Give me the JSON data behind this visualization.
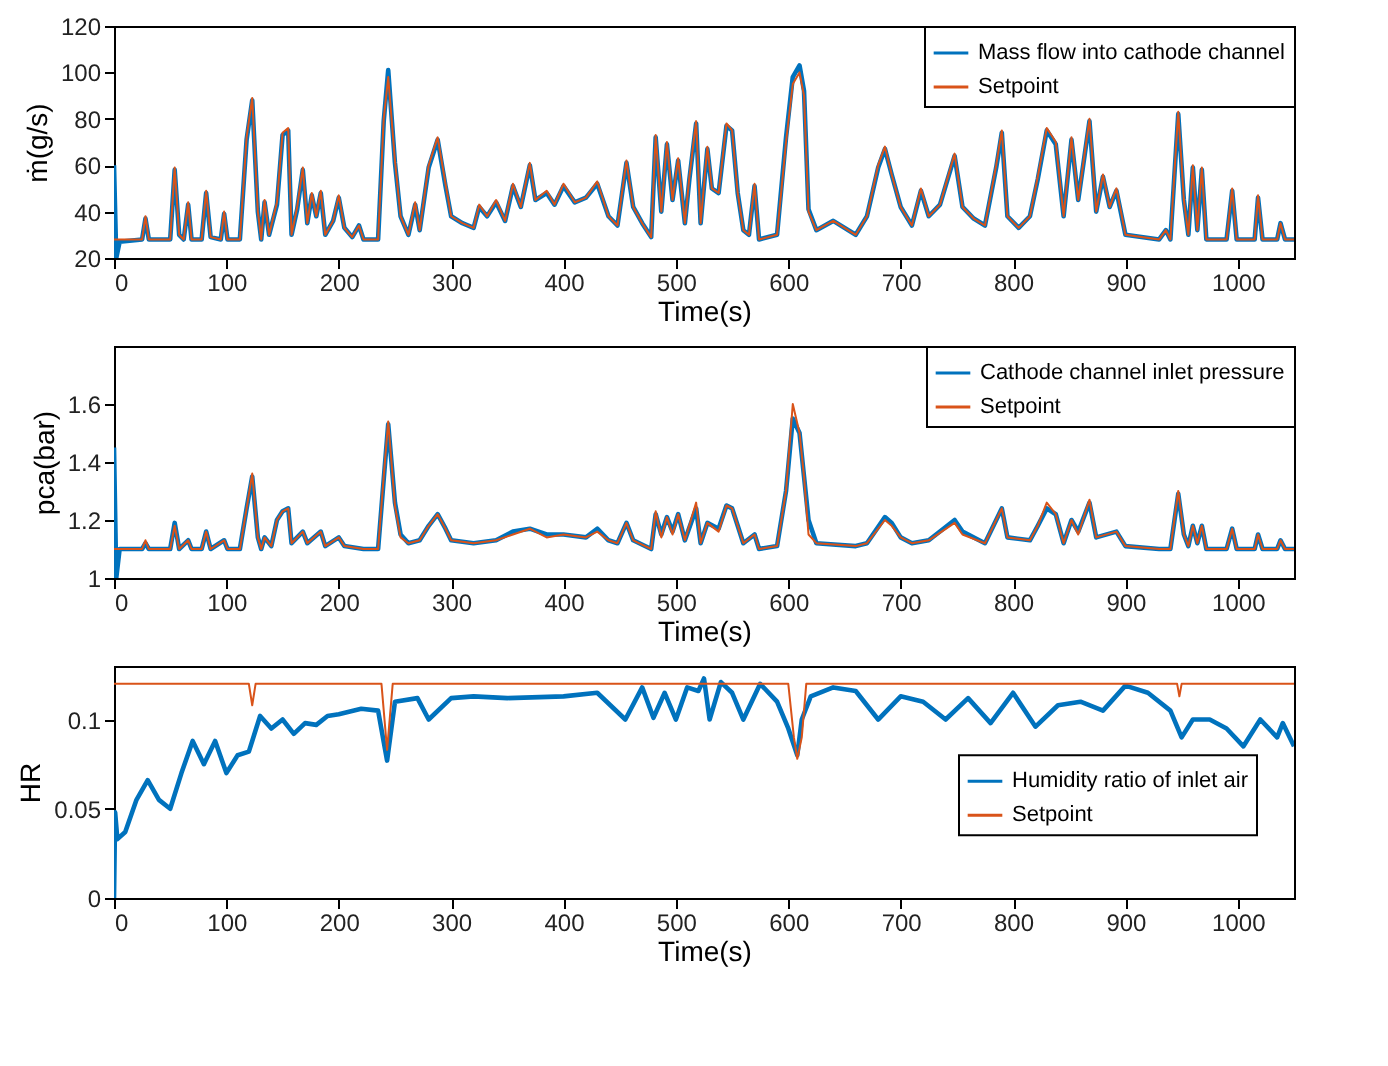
{
  "chart_data": [
    {
      "type": "line",
      "xlabel": "Time(s)",
      "ylabel": "ṁ(g/s)",
      "xlim": [
        0,
        1050
      ],
      "xticks": [
        0,
        100,
        200,
        300,
        400,
        500,
        600,
        700,
        800,
        900,
        1000
      ],
      "ylim": [
        20,
        120
      ],
      "yticks": [
        20,
        40,
        60,
        80,
        100,
        120
      ],
      "grid": false,
      "legend": "top right",
      "marker": "none",
      "line_style": "solid",
      "series": [
        {
          "name": "Mass flow into cathode channel",
          "color": "#0072bd",
          "x": [
            0,
            2,
            5,
            25,
            28,
            31,
            50,
            54,
            58,
            62,
            66,
            69,
            78,
            82,
            86,
            95,
            98,
            101,
            112,
            118,
            123,
            128,
            131,
            134,
            138,
            145,
            150,
            155,
            158,
            163,
            168,
            172,
            176,
            180,
            184,
            188,
            195,
            200,
            205,
            212,
            218,
            222,
            235,
            240,
            244,
            250,
            255,
            262,
            268,
            272,
            280,
            288,
            295,
            300,
            310,
            320,
            325,
            332,
            340,
            348,
            355,
            362,
            370,
            375,
            385,
            392,
            400,
            410,
            420,
            430,
            440,
            448,
            456,
            462,
            470,
            478,
            482,
            487,
            492,
            497,
            502,
            508,
            512,
            518,
            522,
            528,
            532,
            538,
            545,
            550,
            555,
            560,
            565,
            570,
            574,
            590,
            598,
            604,
            610,
            614,
            618,
            625,
            640,
            660,
            670,
            680,
            686,
            692,
            700,
            710,
            718,
            725,
            735,
            748,
            755,
            765,
            775,
            785,
            790,
            795,
            805,
            815,
            822,
            830,
            838,
            845,
            852,
            858,
            868,
            874,
            880,
            886,
            892,
            900,
            930,
            936,
            940,
            944,
            947,
            952,
            956,
            960,
            964,
            968,
            972,
            990,
            995,
            999,
            1015,
            1018,
            1022,
            1035,
            1038,
            1042,
            1050
          ],
          "values": [
            60,
            20,
            27,
            28,
            37,
            28,
            28,
            58,
            30,
            28,
            43,
            28,
            28,
            48,
            29,
            28,
            39,
            28,
            28,
            71,
            88,
            40,
            28,
            44,
            30,
            43,
            73,
            75,
            30,
            41,
            58,
            35,
            47,
            38,
            48,
            30,
            36,
            46,
            33,
            29,
            34,
            28,
            28,
            79,
            101,
            61,
            38,
            30,
            43,
            32,
            59,
            71,
            51,
            38,
            35,
            33,
            42,
            38,
            44,
            36,
            51,
            42,
            60,
            45,
            48,
            43,
            51,
            44,
            46,
            52,
            38,
            34,
            61,
            42,
            35,
            29,
            72,
            40,
            69,
            45,
            62,
            35,
            54,
            78,
            35,
            67,
            50,
            48,
            77,
            75,
            48,
            32,
            30,
            51,
            28,
            30,
            72,
            98,
            103,
            92,
            41,
            32,
            36,
            30,
            38,
            59,
            67,
            56,
            42,
            34,
            49,
            38,
            43,
            64,
            42,
            37,
            34,
            59,
            74,
            38,
            33,
            38,
            54,
            75,
            69,
            38,
            71,
            45,
            79,
            40,
            55,
            42,
            49,
            30,
            28,
            32,
            28,
            59,
            82,
            45,
            30,
            59,
            32,
            58,
            28,
            28,
            49,
            28,
            28,
            46,
            28,
            28,
            35,
            28,
            28
          ]
        },
        {
          "name": "Setpoint",
          "color": "#d95319",
          "x": [
            0,
            25,
            28,
            31,
            50,
            54,
            58,
            62,
            66,
            69,
            78,
            82,
            86,
            95,
            98,
            101,
            112,
            118,
            123,
            128,
            131,
            134,
            138,
            145,
            150,
            155,
            158,
            163,
            168,
            172,
            176,
            180,
            184,
            188,
            195,
            200,
            205,
            212,
            218,
            222,
            235,
            240,
            244,
            250,
            255,
            262,
            268,
            272,
            280,
            288,
            295,
            300,
            310,
            320,
            325,
            332,
            340,
            348,
            355,
            362,
            370,
            375,
            385,
            392,
            400,
            410,
            420,
            430,
            440,
            448,
            456,
            462,
            470,
            478,
            482,
            487,
            492,
            497,
            502,
            508,
            512,
            518,
            522,
            528,
            532,
            538,
            545,
            550,
            555,
            560,
            565,
            570,
            574,
            590,
            598,
            604,
            610,
            614,
            618,
            625,
            640,
            660,
            670,
            680,
            686,
            692,
            700,
            710,
            718,
            725,
            735,
            748,
            755,
            765,
            775,
            785,
            790,
            795,
            805,
            815,
            822,
            830,
            838,
            845,
            852,
            858,
            868,
            874,
            880,
            886,
            892,
            900,
            930,
            936,
            940,
            944,
            947,
            952,
            956,
            960,
            964,
            968,
            972,
            990,
            995,
            999,
            1015,
            1018,
            1022,
            1035,
            1038,
            1042,
            1050
          ],
          "values": [
            28,
            28,
            38,
            28,
            28,
            59,
            30,
            28,
            44,
            28,
            28,
            49,
            29,
            28,
            40,
            28,
            28,
            72,
            89,
            40,
            28,
            45,
            30,
            44,
            74,
            76,
            30,
            42,
            59,
            35,
            48,
            38,
            49,
            30,
            36,
            47,
            33,
            29,
            34,
            28,
            28,
            80,
            98,
            62,
            38,
            30,
            44,
            32,
            60,
            72,
            52,
            38,
            35,
            33,
            43,
            38,
            45,
            36,
            52,
            42,
            61,
            45,
            49,
            43,
            52,
            44,
            46,
            53,
            38,
            34,
            62,
            42,
            35,
            29,
            73,
            40,
            70,
            45,
            63,
            35,
            55,
            79,
            35,
            68,
            50,
            48,
            78,
            75,
            48,
            32,
            30,
            52,
            28,
            30,
            70,
            95,
            100,
            90,
            40,
            32,
            36,
            30,
            38,
            60,
            68,
            56,
            42,
            34,
            50,
            38,
            43,
            65,
            42,
            37,
            34,
            60,
            75,
            38,
            33,
            38,
            55,
            76,
            70,
            38,
            72,
            45,
            80,
            40,
            56,
            42,
            50,
            30,
            28,
            32,
            28,
            60,
            83,
            45,
            30,
            60,
            32,
            59,
            28,
            28,
            50,
            28,
            28,
            47,
            28,
            28,
            35,
            28,
            28
          ]
        }
      ]
    },
    {
      "type": "line",
      "xlabel": "Time(s)",
      "ylabel": "pca(bar)",
      "xlim": [
        0,
        1050
      ],
      "xticks": [
        0,
        100,
        200,
        300,
        400,
        500,
        600,
        700,
        800,
        900,
        1000
      ],
      "ylim": [
        1,
        1.8
      ],
      "yticks": [
        1,
        1.2,
        1.4,
        1.6
      ],
      "grid": false,
      "legend": "top right",
      "marker": "none",
      "line_style": "solid",
      "series": [
        {
          "name": "Cathode channel inlet pressure",
          "color": "#0072bd",
          "x": [
            0,
            2,
            5,
            25,
            28,
            31,
            50,
            54,
            58,
            66,
            69,
            78,
            82,
            86,
            98,
            101,
            112,
            118,
            123,
            128,
            131,
            134,
            140,
            145,
            150,
            155,
            158,
            168,
            172,
            184,
            188,
            200,
            205,
            222,
            235,
            240,
            244,
            250,
            255,
            262,
            272,
            280,
            288,
            295,
            300,
            320,
            340,
            355,
            370,
            385,
            400,
            420,
            430,
            440,
            448,
            456,
            462,
            478,
            482,
            487,
            492,
            497,
            502,
            508,
            518,
            522,
            528,
            538,
            545,
            550,
            555,
            560,
            570,
            574,
            590,
            598,
            604,
            610,
            614,
            618,
            625,
            660,
            670,
            686,
            692,
            700,
            710,
            725,
            748,
            755,
            775,
            790,
            795,
            815,
            822,
            830,
            838,
            845,
            852,
            858,
            868,
            874,
            892,
            900,
            930,
            940,
            947,
            952,
            956,
            960,
            964,
            968,
            972,
            990,
            995,
            999,
            1015,
            1018,
            1022,
            1035,
            1038,
            1042,
            1050
          ],
          "values": [
            1.45,
            1.0,
            1.1,
            1.1,
            1.12,
            1.1,
            1.1,
            1.19,
            1.1,
            1.13,
            1.1,
            1.1,
            1.16,
            1.1,
            1.13,
            1.1,
            1.1,
            1.24,
            1.35,
            1.14,
            1.1,
            1.14,
            1.11,
            1.2,
            1.23,
            1.24,
            1.12,
            1.16,
            1.12,
            1.16,
            1.11,
            1.14,
            1.11,
            1.1,
            1.1,
            1.34,
            1.53,
            1.26,
            1.15,
            1.12,
            1.13,
            1.18,
            1.22,
            1.17,
            1.13,
            1.12,
            1.13,
            1.16,
            1.17,
            1.15,
            1.15,
            1.14,
            1.17,
            1.13,
            1.12,
            1.19,
            1.13,
            1.1,
            1.22,
            1.15,
            1.21,
            1.16,
            1.22,
            1.13,
            1.24,
            1.12,
            1.19,
            1.17,
            1.25,
            1.24,
            1.18,
            1.12,
            1.15,
            1.1,
            1.11,
            1.3,
            1.55,
            1.5,
            1.35,
            1.2,
            1.12,
            1.11,
            1.12,
            1.21,
            1.19,
            1.14,
            1.12,
            1.13,
            1.2,
            1.16,
            1.12,
            1.24,
            1.14,
            1.13,
            1.18,
            1.24,
            1.22,
            1.12,
            1.2,
            1.16,
            1.26,
            1.14,
            1.16,
            1.11,
            1.1,
            1.1,
            1.29,
            1.15,
            1.11,
            1.18,
            1.12,
            1.18,
            1.1,
            1.1,
            1.17,
            1.1,
            1.1,
            1.15,
            1.1,
            1.1,
            1.13,
            1.1,
            1.1
          ]
        },
        {
          "name": "Setpoint",
          "color": "#d95319",
          "x": [
            0,
            25,
            28,
            31,
            50,
            54,
            58,
            66,
            69,
            78,
            82,
            86,
            98,
            101,
            112,
            118,
            123,
            128,
            131,
            134,
            140,
            145,
            150,
            155,
            158,
            168,
            172,
            184,
            188,
            200,
            205,
            222,
            235,
            240,
            244,
            250,
            255,
            262,
            272,
            280,
            288,
            295,
            300,
            320,
            340,
            355,
            370,
            385,
            400,
            420,
            430,
            440,
            448,
            456,
            462,
            478,
            482,
            487,
            492,
            497,
            502,
            508,
            518,
            522,
            528,
            538,
            545,
            550,
            555,
            560,
            570,
            574,
            590,
            598,
            604,
            610,
            614,
            618,
            625,
            660,
            670,
            686,
            692,
            700,
            710,
            725,
            748,
            755,
            775,
            790,
            795,
            815,
            822,
            830,
            838,
            845,
            852,
            858,
            868,
            874,
            892,
            900,
            930,
            940,
            947,
            952,
            956,
            960,
            964,
            968,
            972,
            990,
            995,
            999,
            1015,
            1018,
            1022,
            1035,
            1038,
            1042,
            1050
          ],
          "values": [
            1.1,
            1.1,
            1.13,
            1.1,
            1.1,
            1.18,
            1.1,
            1.13,
            1.1,
            1.1,
            1.16,
            1.1,
            1.13,
            1.1,
            1.1,
            1.24,
            1.36,
            1.14,
            1.1,
            1.14,
            1.11,
            1.2,
            1.23,
            1.24,
            1.12,
            1.16,
            1.12,
            1.16,
            1.11,
            1.14,
            1.11,
            1.1,
            1.1,
            1.35,
            1.54,
            1.25,
            1.14,
            1.12,
            1.13,
            1.18,
            1.22,
            1.17,
            1.13,
            1.12,
            1.13,
            1.15,
            1.17,
            1.14,
            1.15,
            1.14,
            1.16,
            1.13,
            1.12,
            1.19,
            1.13,
            1.1,
            1.23,
            1.14,
            1.21,
            1.15,
            1.22,
            1.13,
            1.26,
            1.12,
            1.19,
            1.16,
            1.25,
            1.24,
            1.18,
            1.12,
            1.15,
            1.1,
            1.11,
            1.3,
            1.6,
            1.5,
            1.35,
            1.15,
            1.12,
            1.11,
            1.12,
            1.2,
            1.18,
            1.14,
            1.12,
            1.13,
            1.19,
            1.15,
            1.12,
            1.24,
            1.14,
            1.13,
            1.18,
            1.26,
            1.22,
            1.12,
            1.2,
            1.15,
            1.27,
            1.14,
            1.16,
            1.11,
            1.1,
            1.1,
            1.3,
            1.15,
            1.11,
            1.18,
            1.12,
            1.18,
            1.1,
            1.1,
            1.17,
            1.1,
            1.1,
            1.15,
            1.1,
            1.1,
            1.13,
            1.1,
            1.1
          ]
        }
      ]
    },
    {
      "type": "line",
      "xlabel": "Time(s)",
      "ylabel": "HR",
      "xlim": [
        0,
        1050
      ],
      "xticks": [
        0,
        100,
        200,
        300,
        400,
        500,
        600,
        700,
        800,
        900,
        1000
      ],
      "ylim": [
        0,
        0.13
      ],
      "yticks": [
        0,
        0.05,
        0.1
      ],
      "grid": false,
      "legend": "right",
      "marker": "none",
      "line_style": "solid",
      "series": [
        {
          "name": "Humidity ratio of inlet air",
          "color": "#0072bd",
          "x": [
            0,
            1,
            3,
            10,
            20,
            30,
            40,
            50,
            60,
            70,
            80,
            90,
            100,
            110,
            120,
            130,
            140,
            150,
            160,
            170,
            180,
            190,
            200,
            220,
            235,
            243,
            250,
            270,
            280,
            300,
            320,
            350,
            400,
            430,
            455,
            470,
            480,
            490,
            500,
            510,
            520,
            525,
            530,
            540,
            550,
            560,
            575,
            590,
            600,
            608,
            612,
            620,
            640,
            660,
            680,
            700,
            720,
            740,
            760,
            780,
            800,
            820,
            840,
            860,
            880,
            900,
            920,
            940,
            950,
            960,
            975,
            990,
            1005,
            1020,
            1035,
            1040,
            1050
          ],
          "values": [
            0,
            0.048,
            0.033,
            0.037,
            0.055,
            0.066,
            0.055,
            0.05,
            0.07,
            0.088,
            0.075,
            0.088,
            0.07,
            0.08,
            0.082,
            0.102,
            0.095,
            0.1,
            0.092,
            0.098,
            0.097,
            0.102,
            0.103,
            0.106,
            0.105,
            0.077,
            0.11,
            0.112,
            0.1,
            0.112,
            0.113,
            0.112,
            0.113,
            0.115,
            0.1,
            0.118,
            0.101,
            0.115,
            0.1,
            0.118,
            0.116,
            0.123,
            0.1,
            0.121,
            0.115,
            0.1,
            0.12,
            0.11,
            0.095,
            0.08,
            0.1,
            0.113,
            0.118,
            0.116,
            0.1,
            0.113,
            0.11,
            0.1,
            0.112,
            0.098,
            0.115,
            0.096,
            0.108,
            0.11,
            0.105,
            0.119,
            0.115,
            0.105,
            0.09,
            0.1,
            0.1,
            0.095,
            0.085,
            0.1,
            0.09,
            0.098,
            0.085
          ]
        },
        {
          "name": "Setpoint",
          "color": "#d95319",
          "x": [
            0,
            120,
            123,
            126,
            238,
            243,
            248,
            600,
            605,
            608,
            612,
            616,
            946,
            948,
            950,
            1050
          ],
          "values": [
            0.12,
            0.12,
            0.108,
            0.12,
            0.12,
            0.083,
            0.12,
            0.12,
            0.09,
            0.078,
            0.09,
            0.12,
            0.12,
            0.113,
            0.12,
            0.12
          ]
        }
      ]
    }
  ]
}
